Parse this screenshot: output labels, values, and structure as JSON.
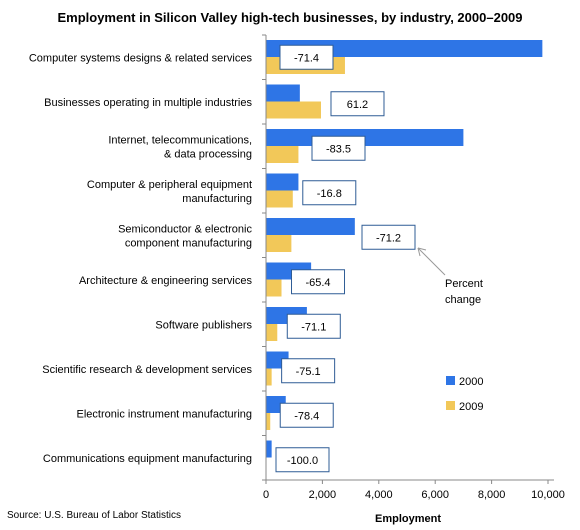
{
  "chart_data": {
    "type": "bar",
    "orientation": "horizontal",
    "title": "Employment in Silicon Valley high-tech businesses, by industry, 2000–2009",
    "xlabel": "Employment",
    "ylabel": "",
    "xlim": [
      0,
      10000
    ],
    "xticks": [
      "0",
      "2,000",
      "4,000",
      "6,000",
      "8,000",
      "10,000"
    ],
    "tick_values": [
      0,
      2000,
      4000,
      6000,
      8000,
      10000
    ],
    "grid": false,
    "legend_position": "right",
    "categories": [
      [
        "Computer systems designs & related services"
      ],
      [
        "Businesses operating in multiple industries"
      ],
      [
        "Internet, telecommunications,",
        "& data processing"
      ],
      [
        "Computer & peripheral equipment",
        "manufacturing"
      ],
      [
        "Semiconductor & electronic",
        "component manufacturing"
      ],
      [
        "Architecture & engineering services"
      ],
      [
        "Software publishers"
      ],
      [
        "Scientific research & development services"
      ],
      [
        "Electronic instrument manufacturing"
      ],
      [
        "Communications equipment manufacturing"
      ]
    ],
    "series": [
      {
        "name": "2000",
        "color": "#2E75E6",
        "values": [
          9800,
          1200,
          7000,
          1150,
          3150,
          1600,
          1450,
          800,
          700,
          200
        ]
      },
      {
        "name": "2009",
        "color": "#F2C859",
        "values": [
          2800,
          1950,
          1150,
          950,
          900,
          550,
          400,
          200,
          150,
          0
        ]
      }
    ],
    "percent_change": [
      "-71.4",
      "61.2",
      "-83.5",
      "-16.8",
      "-71.2",
      "-65.4",
      "-71.1",
      "-75.1",
      "-78.4",
      "-100.0"
    ],
    "annotation": {
      "lines": [
        "Percent",
        "change"
      ]
    }
  },
  "source": "Source: U.S. Bureau of Labor Statistics"
}
